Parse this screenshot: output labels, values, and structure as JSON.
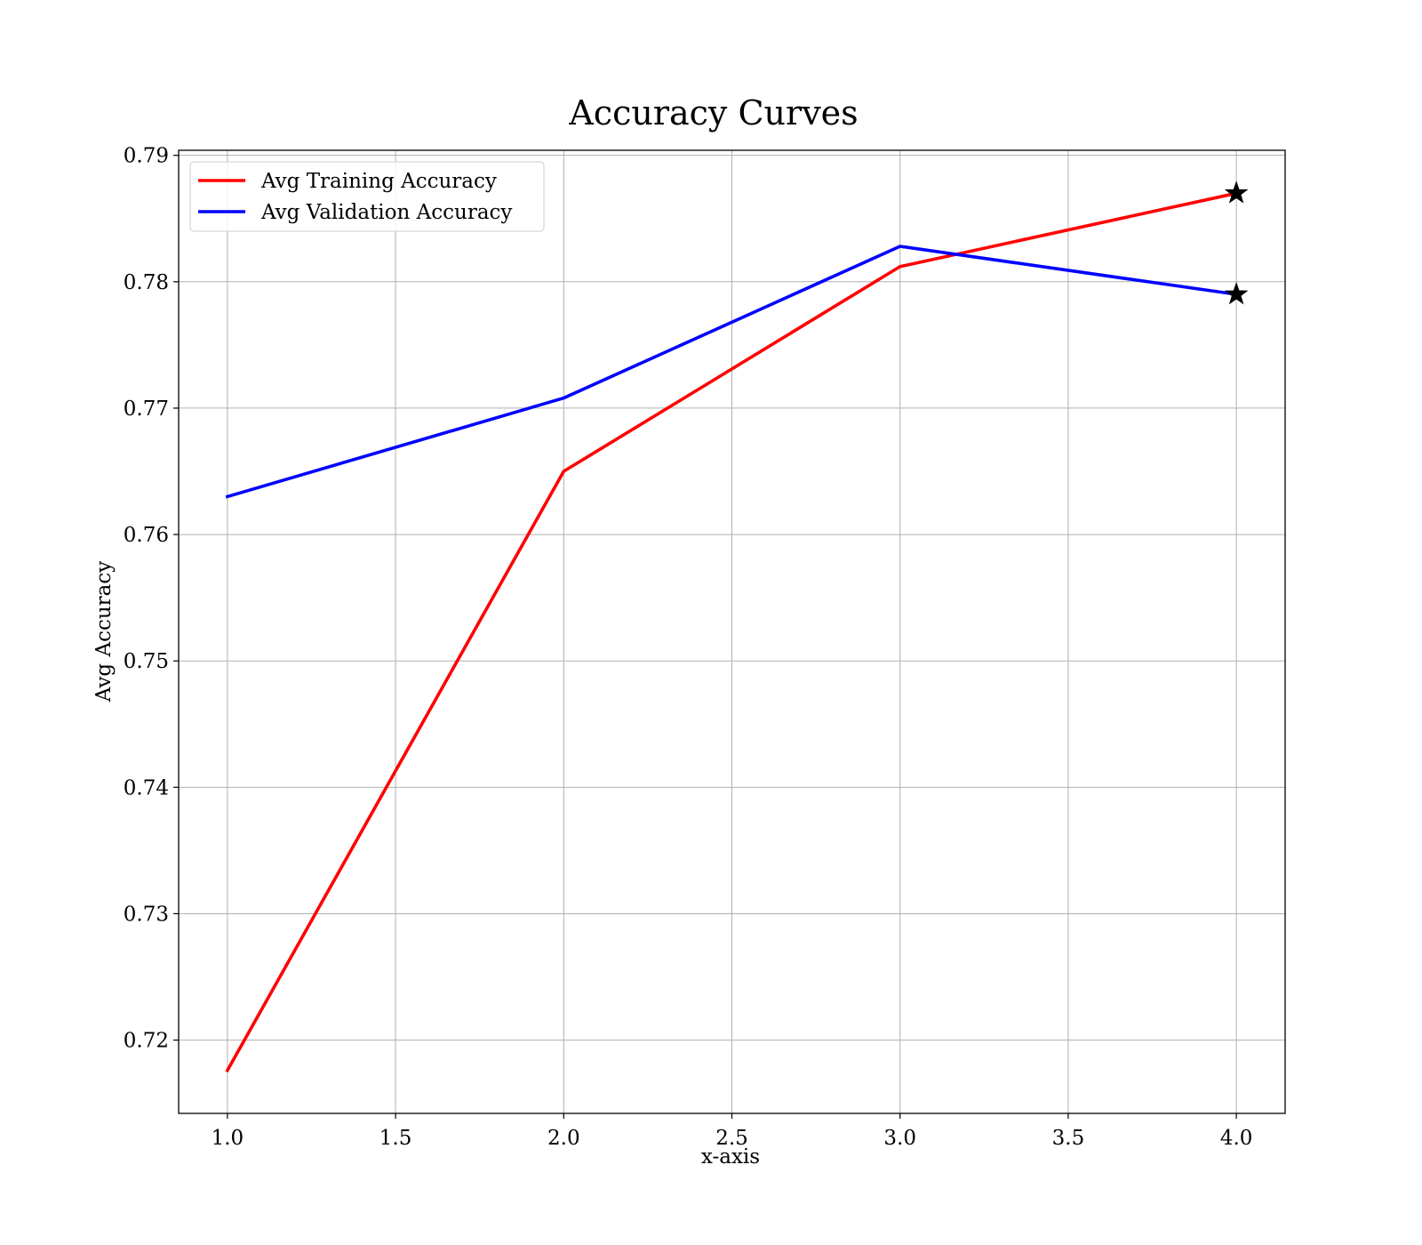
{
  "chart_data": {
    "type": "line",
    "title": "Accuracy Curves",
    "xlabel": "x-axis",
    "ylabel": "Avg Accuracy",
    "xlim": [
      0.855,
      4.145
    ],
    "ylim": [
      0.7142,
      0.7904
    ],
    "xticks": [
      1.0,
      1.5,
      2.0,
      2.5,
      3.0,
      3.5,
      4.0
    ],
    "xtick_labels": [
      "1.0",
      "1.5",
      "2.0",
      "2.5",
      "3.0",
      "3.5",
      "4.0"
    ],
    "yticks": [
      0.72,
      0.73,
      0.74,
      0.75,
      0.76,
      0.77,
      0.78,
      0.79
    ],
    "ytick_labels": [
      "0.72",
      "0.73",
      "0.74",
      "0.75",
      "0.76",
      "0.77",
      "0.78",
      "0.79"
    ],
    "grid": true,
    "legend_position": "upper-left",
    "series": [
      {
        "name": "Avg Training Accuracy",
        "color": "#ff0000",
        "x": [
          1,
          2,
          3,
          4
        ],
        "y": [
          0.7176,
          0.765,
          0.7812,
          0.787
        ],
        "best_marker": {
          "x": 4,
          "y": 0.787,
          "symbol": "star"
        }
      },
      {
        "name": "Avg Validation Accuracy",
        "color": "#0000ff",
        "x": [
          1,
          2,
          3,
          4
        ],
        "y": [
          0.763,
          0.7708,
          0.7828,
          0.779
        ],
        "best_marker": {
          "x": 4,
          "y": 0.779,
          "symbol": "star"
        }
      }
    ]
  }
}
